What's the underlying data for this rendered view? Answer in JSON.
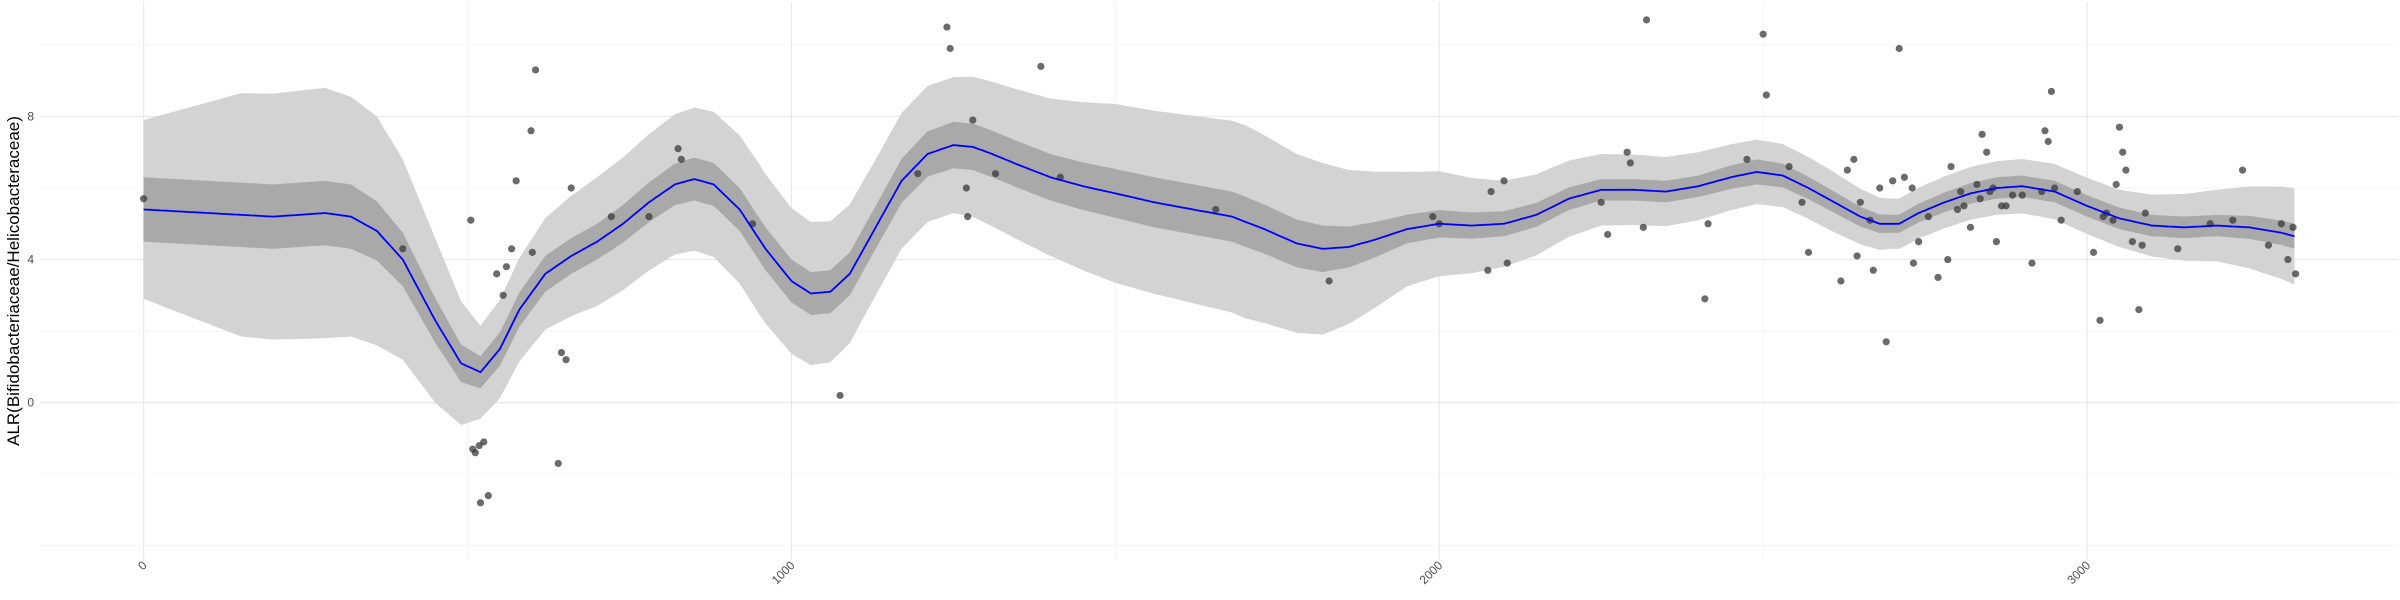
{
  "chart_data": {
    "type": "scatter",
    "title": "",
    "xlabel": "",
    "ylabel": "ALR(Bifidobacteriaceae/Helicobacteraceae)",
    "xlim": [
      -160,
      3480
    ],
    "ylim": [
      -4.4,
      11.2
    ],
    "x_ticks": [
      0,
      1000,
      2000,
      3000
    ],
    "x_tick_labels": [
      "0",
      "1000",
      "2000",
      "3000"
    ],
    "y_ticks": [
      0,
      4,
      8
    ],
    "y_tick_labels": [
      "0",
      "4",
      "8"
    ],
    "grid": true,
    "colors": {
      "background": "#ffffff",
      "grid_major": "#e8e8e8",
      "grid_minor": "#f3f3f3",
      "points": "#3a3a3a",
      "smooth_line": "#0000ff",
      "inner_band": "#a9a9a9",
      "outer_band": "#d3d3d3"
    },
    "points": [
      [
        0,
        5.7
      ],
      [
        400,
        4.3
      ],
      [
        505,
        5.1
      ],
      [
        508,
        -1.3
      ],
      [
        512,
        -1.4
      ],
      [
        518,
        -1.2
      ],
      [
        525,
        -1.1
      ],
      [
        520,
        -2.8
      ],
      [
        532,
        -2.6
      ],
      [
        545,
        3.6
      ],
      [
        555,
        3.0
      ],
      [
        560,
        3.8
      ],
      [
        568,
        4.3
      ],
      [
        575,
        6.2
      ],
      [
        598,
        7.6
      ],
      [
        605,
        9.3
      ],
      [
        600,
        4.2
      ],
      [
        640,
        -1.7
      ],
      [
        645,
        1.4
      ],
      [
        652,
        1.2
      ],
      [
        660,
        6.0
      ],
      [
        722,
        5.2
      ],
      [
        780,
        5.2
      ],
      [
        825,
        7.1
      ],
      [
        830,
        6.8
      ],
      [
        940,
        5.0
      ],
      [
        1075,
        0.2
      ],
      [
        1195,
        6.4
      ],
      [
        1240,
        10.5
      ],
      [
        1245,
        9.9
      ],
      [
        1270,
        6.0
      ],
      [
        1272,
        5.2
      ],
      [
        1280,
        7.9
      ],
      [
        1315,
        6.4
      ],
      [
        1385,
        9.4
      ],
      [
        1415,
        6.3
      ],
      [
        1655,
        5.4
      ],
      [
        1830,
        3.4
      ],
      [
        1990,
        5.2
      ],
      [
        2000,
        5.0
      ],
      [
        2075,
        3.7
      ],
      [
        2080,
        5.9
      ],
      [
        2100,
        6.2
      ],
      [
        2105,
        3.9
      ],
      [
        2250,
        5.6
      ],
      [
        2260,
        4.7
      ],
      [
        2290,
        7.0
      ],
      [
        2295,
        6.7
      ],
      [
        2315,
        4.9
      ],
      [
        2320,
        10.7
      ],
      [
        2410,
        2.9
      ],
      [
        2415,
        5.0
      ],
      [
        2475,
        6.8
      ],
      [
        2500,
        10.3
      ],
      [
        2505,
        8.6
      ],
      [
        2540,
        6.6
      ],
      [
        2560,
        5.6
      ],
      [
        2570,
        4.2
      ],
      [
        2620,
        3.4
      ],
      [
        2630,
        6.5
      ],
      [
        2640,
        6.8
      ],
      [
        2645,
        4.1
      ],
      [
        2650,
        5.6
      ],
      [
        2665,
        5.1
      ],
      [
        2670,
        3.7
      ],
      [
        2680,
        6.0
      ],
      [
        2690,
        1.7
      ],
      [
        2700,
        6.2
      ],
      [
        2710,
        9.9
      ],
      [
        2718,
        6.3
      ],
      [
        2730,
        6.0
      ],
      [
        2732,
        3.9
      ],
      [
        2740,
        4.5
      ],
      [
        2755,
        5.2
      ],
      [
        2770,
        3.5
      ],
      [
        2785,
        4.0
      ],
      [
        2790,
        6.6
      ],
      [
        2800,
        5.4
      ],
      [
        2805,
        5.9
      ],
      [
        2810,
        5.5
      ],
      [
        2820,
        4.9
      ],
      [
        2830,
        6.1
      ],
      [
        2835,
        5.7
      ],
      [
        2838,
        7.5
      ],
      [
        2845,
        7.0
      ],
      [
        2850,
        5.9
      ],
      [
        2855,
        6.0
      ],
      [
        2860,
        4.5
      ],
      [
        2868,
        5.5
      ],
      [
        2875,
        5.5
      ],
      [
        2885,
        5.8
      ],
      [
        2900,
        5.8
      ],
      [
        2915,
        3.9
      ],
      [
        2930,
        5.9
      ],
      [
        2935,
        7.6
      ],
      [
        2940,
        7.3
      ],
      [
        2945,
        8.7
      ],
      [
        2950,
        6.0
      ],
      [
        2960,
        5.1
      ],
      [
        2985,
        5.9
      ],
      [
        3010,
        4.2
      ],
      [
        3020,
        2.3
      ],
      [
        3025,
        5.2
      ],
      [
        3030,
        5.3
      ],
      [
        3040,
        5.1
      ],
      [
        3045,
        6.1
      ],
      [
        3050,
        7.7
      ],
      [
        3055,
        7.0
      ],
      [
        3060,
        6.5
      ],
      [
        3070,
        4.5
      ],
      [
        3080,
        2.6
      ],
      [
        3085,
        4.4
      ],
      [
        3090,
        5.3
      ],
      [
        3140,
        4.3
      ],
      [
        3190,
        5.0
      ],
      [
        3225,
        5.1
      ],
      [
        3240,
        6.5
      ],
      [
        3280,
        4.4
      ],
      [
        3300,
        5.0
      ],
      [
        3310,
        4.0
      ],
      [
        3318,
        4.9
      ],
      [
        3322,
        3.6
      ]
    ],
    "smooth_line": [
      [
        0,
        5.4
      ],
      [
        100,
        5.3
      ],
      [
        200,
        5.2
      ],
      [
        280,
        5.3
      ],
      [
        320,
        5.2
      ],
      [
        360,
        4.8
      ],
      [
        400,
        4.0
      ],
      [
        450,
        2.3
      ],
      [
        490,
        1.1
      ],
      [
        520,
        0.85
      ],
      [
        550,
        1.5
      ],
      [
        580,
        2.6
      ],
      [
        620,
        3.6
      ],
      [
        660,
        4.1
      ],
      [
        700,
        4.5
      ],
      [
        740,
        5.0
      ],
      [
        780,
        5.6
      ],
      [
        820,
        6.1
      ],
      [
        850,
        6.25
      ],
      [
        880,
        6.1
      ],
      [
        920,
        5.4
      ],
      [
        960,
        4.3
      ],
      [
        1000,
        3.4
      ],
      [
        1030,
        3.05
      ],
      [
        1060,
        3.1
      ],
      [
        1090,
        3.6
      ],
      [
        1130,
        4.9
      ],
      [
        1170,
        6.2
      ],
      [
        1210,
        6.95
      ],
      [
        1250,
        7.2
      ],
      [
        1280,
        7.15
      ],
      [
        1310,
        6.95
      ],
      [
        1350,
        6.65
      ],
      [
        1400,
        6.3
      ],
      [
        1450,
        6.05
      ],
      [
        1500,
        5.85
      ],
      [
        1560,
        5.6
      ],
      [
        1620,
        5.4
      ],
      [
        1680,
        5.2
      ],
      [
        1730,
        4.85
      ],
      [
        1780,
        4.45
      ],
      [
        1820,
        4.3
      ],
      [
        1860,
        4.35
      ],
      [
        1900,
        4.55
      ],
      [
        1950,
        4.85
      ],
      [
        2000,
        5.0
      ],
      [
        2050,
        4.95
      ],
      [
        2100,
        5.0
      ],
      [
        2150,
        5.25
      ],
      [
        2200,
        5.7
      ],
      [
        2250,
        5.95
      ],
      [
        2300,
        5.95
      ],
      [
        2350,
        5.9
      ],
      [
        2400,
        6.05
      ],
      [
        2450,
        6.3
      ],
      [
        2490,
        6.45
      ],
      [
        2530,
        6.35
      ],
      [
        2570,
        6.0
      ],
      [
        2610,
        5.6
      ],
      [
        2650,
        5.2
      ],
      [
        2680,
        5.0
      ],
      [
        2710,
        5.0
      ],
      [
        2740,
        5.3
      ],
      [
        2780,
        5.6
      ],
      [
        2820,
        5.85
      ],
      [
        2860,
        6.0
      ],
      [
        2900,
        6.05
      ],
      [
        2950,
        5.9
      ],
      [
        3000,
        5.5
      ],
      [
        3050,
        5.15
      ],
      [
        3100,
        4.95
      ],
      [
        3150,
        4.9
      ],
      [
        3200,
        4.95
      ],
      [
        3250,
        4.9
      ],
      [
        3300,
        4.75
      ],
      [
        3320,
        4.65
      ]
    ],
    "inner_band_halfwidth": [
      [
        0,
        0.9
      ],
      [
        200,
        0.9
      ],
      [
        320,
        0.9
      ],
      [
        400,
        0.75
      ],
      [
        520,
        0.45
      ],
      [
        620,
        0.5
      ],
      [
        700,
        0.5
      ],
      [
        850,
        0.6
      ],
      [
        950,
        0.6
      ],
      [
        1030,
        0.6
      ],
      [
        1130,
        0.6
      ],
      [
        1250,
        0.65
      ],
      [
        1400,
        0.65
      ],
      [
        1560,
        0.7
      ],
      [
        1700,
        0.7
      ],
      [
        1820,
        0.65
      ],
      [
        1950,
        0.4
      ],
      [
        2100,
        0.35
      ],
      [
        2250,
        0.3
      ],
      [
        2400,
        0.3
      ],
      [
        2490,
        0.35
      ],
      [
        2600,
        0.3
      ],
      [
        2700,
        0.25
      ],
      [
        2860,
        0.3
      ],
      [
        3050,
        0.3
      ],
      [
        3200,
        0.3
      ],
      [
        3320,
        0.35
      ]
    ],
    "outer_band_halfwidth": [
      [
        0,
        2.5
      ],
      [
        150,
        3.4
      ],
      [
        280,
        3.5
      ],
      [
        360,
        3.2
      ],
      [
        450,
        2.3
      ],
      [
        520,
        1.3
      ],
      [
        600,
        1.5
      ],
      [
        700,
        1.8
      ],
      [
        850,
        2.0
      ],
      [
        950,
        2.1
      ],
      [
        1030,
        2.0
      ],
      [
        1130,
        1.9
      ],
      [
        1250,
        1.9
      ],
      [
        1400,
        2.2
      ],
      [
        1500,
        2.5
      ],
      [
        1600,
        2.6
      ],
      [
        1700,
        2.7
      ],
      [
        1820,
        2.4
      ],
      [
        1950,
        1.6
      ],
      [
        2100,
        1.2
      ],
      [
        2250,
        1.0
      ],
      [
        2400,
        0.95
      ],
      [
        2490,
        0.9
      ],
      [
        2600,
        0.85
      ],
      [
        2700,
        0.7
      ],
      [
        2860,
        0.75
      ],
      [
        3050,
        0.8
      ],
      [
        3200,
        1.0
      ],
      [
        3320,
        1.35
      ]
    ]
  }
}
